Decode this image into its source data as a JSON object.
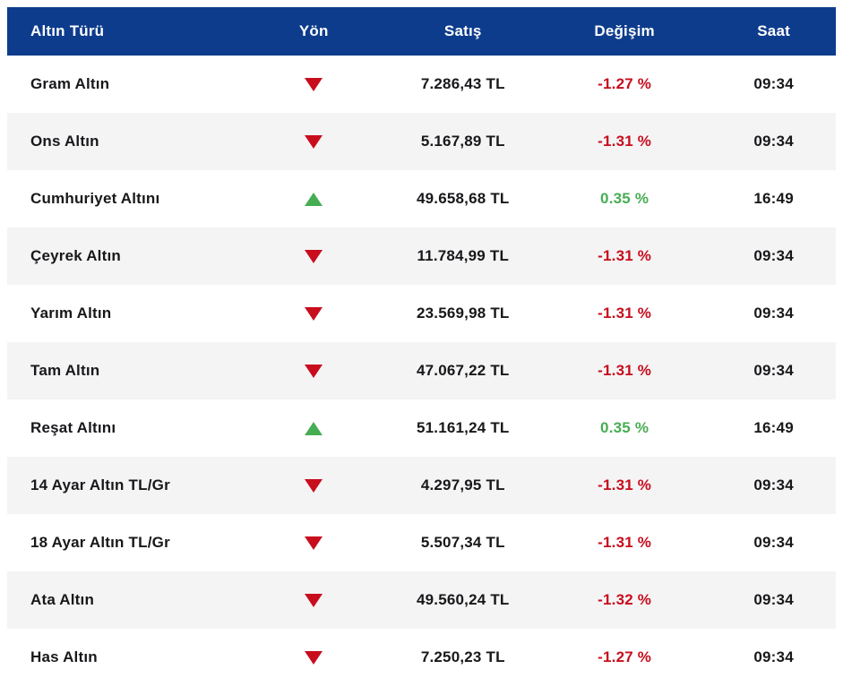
{
  "table": {
    "columns": [
      {
        "label": "Altın Türü"
      },
      {
        "label": "Yön"
      },
      {
        "label": "Satış"
      },
      {
        "label": "Değişim"
      },
      {
        "label": "Saat"
      }
    ],
    "rows": [
      {
        "type": "Gram Altın",
        "direction": "down",
        "price": "7.286,43 TL",
        "change": "-1.27 %",
        "time": "09:34"
      },
      {
        "type": "Ons Altın",
        "direction": "down",
        "price": "5.167,89 TL",
        "change": "-1.31 %",
        "time": "09:34"
      },
      {
        "type": "Cumhuriyet Altını",
        "direction": "up",
        "price": "49.658,68 TL",
        "change": "0.35 %",
        "time": "16:49"
      },
      {
        "type": "Çeyrek Altın",
        "direction": "down",
        "price": "11.784,99 TL",
        "change": "-1.31 %",
        "time": "09:34"
      },
      {
        "type": "Yarım Altın",
        "direction": "down",
        "price": "23.569,98 TL",
        "change": "-1.31 %",
        "time": "09:34"
      },
      {
        "type": "Tam Altın",
        "direction": "down",
        "price": "47.067,22 TL",
        "change": "-1.31 %",
        "time": "09:34"
      },
      {
        "type": "Reşat Altını",
        "direction": "up",
        "price": "51.161,24 TL",
        "change": "0.35 %",
        "time": "16:49"
      },
      {
        "type": "14 Ayar Altın TL/Gr",
        "direction": "down",
        "price": "4.297,95 TL",
        "change": "-1.31 %",
        "time": "09:34"
      },
      {
        "type": "18 Ayar Altın TL/Gr",
        "direction": "down",
        "price": "5.507,34 TL",
        "change": "-1.31 %",
        "time": "09:34"
      },
      {
        "type": "Ata Altın",
        "direction": "down",
        "price": "49.560,24 TL",
        "change": "-1.32 %",
        "time": "09:34"
      },
      {
        "type": "Has Altın",
        "direction": "down",
        "price": "7.250,23 TL",
        "change": "-1.27 %",
        "time": "09:34"
      }
    ]
  },
  "icons": {
    "down": "red-down-triangle",
    "up": "green-up-triangle"
  },
  "colors": {
    "header_bg": "#0d3c8c",
    "negative": "#c80d1d",
    "positive": "#47ad53",
    "row_alt_bg": "#f4f4f5",
    "text": "#18181b"
  }
}
